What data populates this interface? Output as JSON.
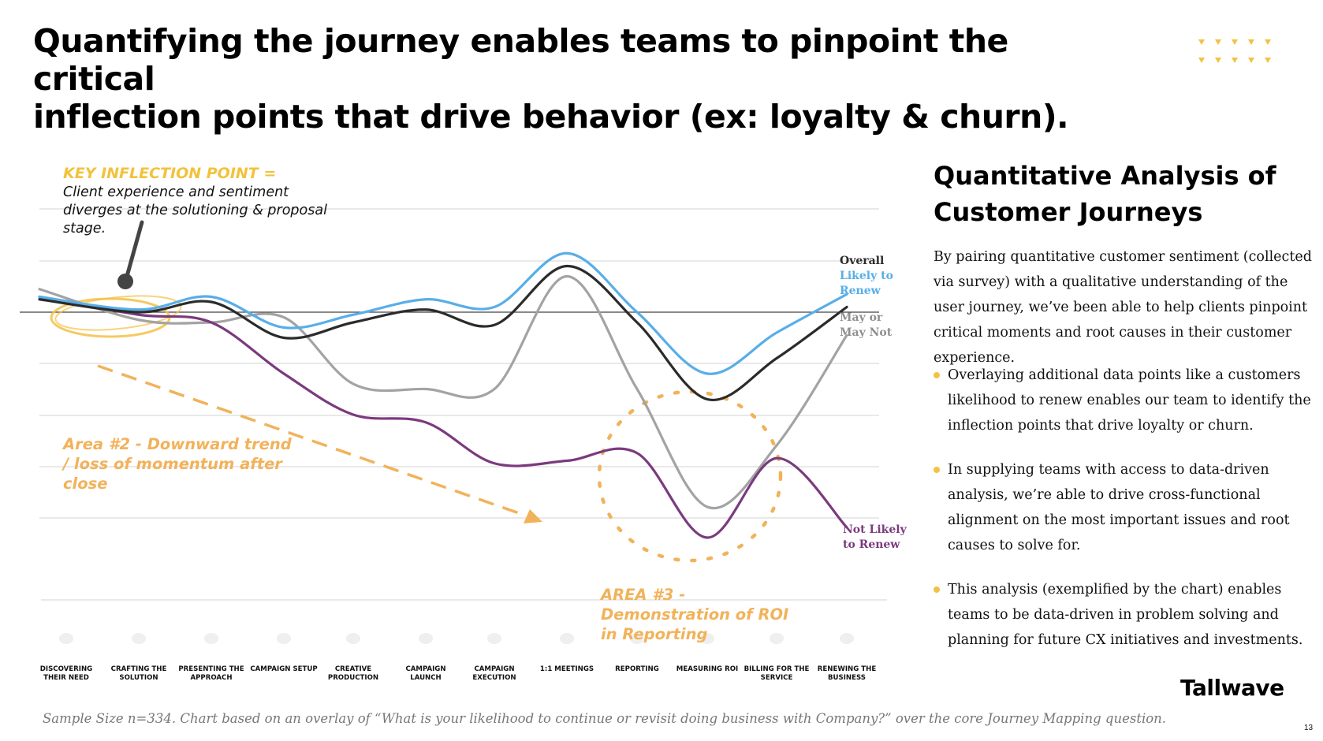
{
  "title": {
    "line1": "Quantifying the journey enables teams to pinpoint the critical",
    "line2": "inflection points that drive behavior (ex: loyalty & churn)."
  },
  "annotations": {
    "key_title": "KEY INFLECTION POINT =",
    "key_body": "Client experience and sentiment diverges at the solutioning & proposal stage.",
    "area2": "Area #2 - Downward trend / loss of momentum after close",
    "area3": "AREA #3 - Demonstration of ROI in Reporting"
  },
  "series_labels": {
    "overall": "Overall",
    "likely": "Likely to Renew",
    "maybe": "May or May Not",
    "not_likely": "Not Likely to Renew"
  },
  "colors": {
    "overall": "#2b2b2b",
    "likely": "#58aee8",
    "maybe": "#a3a3a3",
    "not_likely": "#7b3a7e",
    "accent": "#f2b25a",
    "highlight": "#f3c144"
  },
  "chart_data": {
    "type": "line",
    "categories": [
      "DISCOVERING THEIR NEED",
      "CRAFTING THE SOLUTION",
      "PRESENTING THE APPROACH",
      "CAMPAIGN SETUP",
      "CREATIVE PRODUCTION",
      "CAMPAIGN LAUNCH",
      "CAMPAIGN EXECUTION",
      "1:1 MEETINGS",
      "REPORTING",
      "MEASURING ROI",
      "BILLING FOR THE SERVICE",
      "RENEWING THE BUSINESS"
    ],
    "series": [
      {
        "name": "Overall",
        "key": "overall",
        "values": [
          0.25,
          0.0,
          0.2,
          -0.5,
          -0.2,
          0.05,
          -0.25,
          0.9,
          -0.2,
          -1.7,
          -0.9,
          0.1
        ]
      },
      {
        "name": "Likely to Renew",
        "key": "likely",
        "values": [
          0.3,
          0.05,
          0.3,
          -0.3,
          -0.05,
          0.25,
          0.1,
          1.15,
          0.0,
          -1.2,
          -0.4,
          0.35
        ]
      },
      {
        "name": "May or May Not",
        "key": "maybe",
        "values": [
          0.45,
          -0.15,
          -0.2,
          -0.1,
          -1.4,
          -1.5,
          -1.5,
          0.7,
          -1.5,
          -3.8,
          -2.6,
          -0.45
        ]
      },
      {
        "name": "Not Likely to Renew",
        "key": "not_likely",
        "values": [
          0.3,
          -0.05,
          -0.2,
          -1.2,
          -2.0,
          -2.15,
          -2.95,
          -2.9,
          -2.75,
          -4.4,
          -2.85,
          -4.2
        ]
      }
    ],
    "grid": true,
    "baseline": 0
  },
  "heading": {
    "line1": "Quantitative Analysis of",
    "line2": "Customer Journeys"
  },
  "intro": "By pairing quantitative customer sentiment (collected via survey) with a qualitative understanding of the user journey, we’ve been able to help clients pinpoint critical moments and root causes in their customer experience.",
  "bullets": [
    "Overlaying additional data points like a customers likelihood to renew enables our team to identify the inflection points that drive loyalty or churn.",
    "In supplying teams with access to data-driven analysis, we’re able to drive cross-functional alignment on the most important issues and root causes to solve for.",
    "This analysis (exemplified by the chart) enables teams to be data-driven in problem solving and planning for future CX initiatives and investments."
  ],
  "logo": "Tallwave",
  "footnote": "Sample Size n=334. Chart based on an overlay of “What is your likelihood to continue or revisit doing business with Company?” over the core Journey Mapping question.",
  "page_number": "13"
}
